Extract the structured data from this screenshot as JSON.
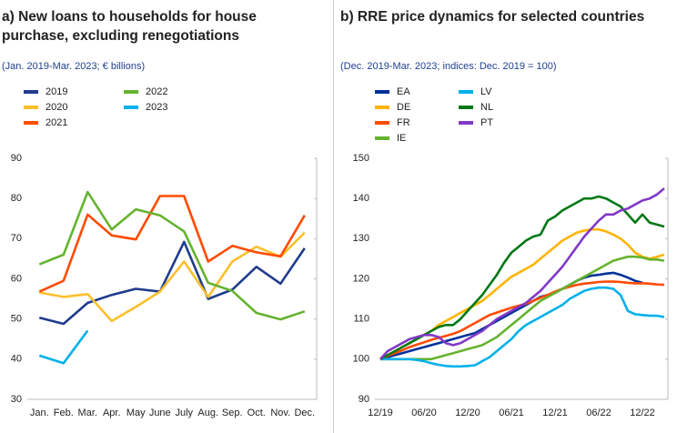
{
  "chart_data": [
    {
      "type": "line",
      "title": "a) New loans to households for house purchase, excluding renegotiations",
      "subtitle": "(Jan. 2019-Mar. 2023; € billions)",
      "categories": [
        "Jan.",
        "Feb.",
        "Mar.",
        "Apr.",
        "May",
        "June",
        "July",
        "Aug.",
        "Sep.",
        "Oct.",
        "Nov.",
        "Dec."
      ],
      "ylim": [
        30,
        90
      ],
      "yticks": [
        30,
        40,
        50,
        60,
        70,
        80,
        90
      ],
      "series": [
        {
          "name": "2019",
          "color": "#1f3c8c",
          "values": [
            50.3,
            48.8,
            54,
            56,
            57.5,
            56.8,
            69.2,
            55,
            57.3,
            63,
            58.8,
            67.6
          ]
        },
        {
          "name": "2020",
          "color": "#fbbf2d",
          "values": [
            56.6,
            55.5,
            56.2,
            49.5,
            53,
            56.8,
            64.3,
            55.5,
            64.3,
            68,
            65.5,
            71.5
          ]
        },
        {
          "name": "2021",
          "color": "#ff4b00",
          "values": [
            56.8,
            59.5,
            76,
            70.8,
            69.8,
            80.6,
            80.6,
            64.3,
            68.2,
            66.6,
            65.6,
            75.8
          ]
        },
        {
          "name": "2022",
          "color": "#65b32e",
          "values": [
            63.6,
            66,
            81.6,
            72.3,
            77.3,
            75.8,
            71.8,
            59,
            57,
            51.5,
            49.9,
            51.9
          ]
        },
        {
          "name": "2023",
          "color": "#00b1ea",
          "values": [
            40.9,
            39,
            47.1,
            null,
            null,
            null,
            null,
            null,
            null,
            null,
            null,
            null
          ]
        }
      ]
    },
    {
      "type": "line",
      "title": "b) RRE price dynamics for selected countries",
      "subtitle": "(Dec. 2019-Mar. 2023; indices: Dec. 2019 = 100)",
      "categories": [
        "12/19",
        null,
        null,
        null,
        null,
        null,
        "06/20",
        null,
        null,
        null,
        null,
        null,
        "12/20",
        null,
        null,
        null,
        null,
        null,
        "06/21",
        null,
        null,
        null,
        null,
        null,
        "12/21",
        null,
        null,
        null,
        null,
        null,
        "06/22",
        null,
        null,
        null,
        null,
        null,
        "12/22",
        null,
        null,
        null
      ],
      "ylim": [
        90,
        150
      ],
      "yticks": [
        90,
        100,
        110,
        120,
        130,
        140,
        150
      ],
      "series": [
        {
          "name": "EA",
          "color": "#003299",
          "values": [
            100,
            100.5,
            101,
            101.5,
            102,
            102.5,
            103,
            103.5,
            104,
            104.5,
            105,
            105.5,
            106,
            106.5,
            107.5,
            108.5,
            109.5,
            110.5,
            111.5,
            112.5,
            113.5,
            114.5,
            115.5,
            116,
            116.5,
            117.5,
            118.5,
            119.5,
            120.3,
            120.8,
            121,
            121.3,
            121.5,
            121,
            120.3,
            119.5,
            119,
            null,
            null,
            null
          ]
        },
        {
          "name": "DE",
          "color": "#ffb400",
          "values": [
            100,
            101,
            102,
            103,
            104,
            105,
            106,
            107,
            108.5,
            109.5,
            110.5,
            111.5,
            112.5,
            113.5,
            114.5,
            116,
            117.5,
            119,
            120.5,
            121.5,
            122.5,
            123.5,
            125,
            126.5,
            128,
            129.5,
            130.5,
            131.5,
            132,
            132.3,
            132.3,
            131.8,
            131,
            130,
            128.5,
            126.5,
            125.5,
            125,
            125.5,
            126
          ]
        },
        {
          "name": "FR",
          "color": "#ff4b00",
          "values": [
            100,
            100.8,
            101.5,
            102.2,
            103,
            103.6,
            104.2,
            104.8,
            105.3,
            105.8,
            106.3,
            107,
            108,
            109,
            110,
            111,
            111.6,
            112.2,
            112.8,
            113.3,
            113.8,
            114.5,
            115.3,
            116,
            116.8,
            117.5,
            118,
            118.5,
            118.8,
            119,
            119.2,
            119.3,
            119.3,
            119.2,
            119,
            118.9,
            118.9,
            118.8,
            118.6,
            118.5
          ]
        },
        {
          "name": "IE",
          "color": "#65b32e",
          "values": [
            100,
            100,
            100,
            100,
            100,
            100,
            100,
            100,
            100.5,
            101,
            101.5,
            102,
            102.5,
            103,
            103.5,
            104.5,
            105.5,
            107,
            108.5,
            110,
            111.5,
            113,
            114.5,
            115.5,
            116.5,
            117.5,
            118.5,
            119.5,
            120.5,
            121.5,
            122.5,
            123.5,
            124.5,
            125,
            125.5,
            125.5,
            125.3,
            124.8,
            124.8,
            124.5
          ]
        },
        {
          "name": "LV",
          "color": "#00b1ea",
          "values": [
            100,
            100,
            100,
            100,
            100,
            99.8,
            99.5,
            99,
            98.6,
            98.3,
            98.2,
            98.2,
            98.3,
            98.5,
            99.5,
            100.5,
            102,
            103.5,
            105,
            107,
            108.5,
            109.5,
            110.5,
            111.5,
            112.5,
            113.5,
            115,
            116,
            117,
            117.5,
            117.8,
            117.8,
            117.5,
            116,
            112,
            111.2,
            111,
            110.8,
            110.8,
            110.5
          ]
        },
        {
          "name": "NL",
          "color": "#007816",
          "values": [
            100,
            101,
            102,
            103,
            104,
            105,
            106,
            107,
            108,
            108.5,
            108.5,
            110,
            112,
            114,
            116,
            118.5,
            121,
            124,
            126.5,
            128,
            129.5,
            130.5,
            131,
            134.5,
            135.5,
            137,
            138,
            139,
            140,
            140,
            140.5,
            140,
            139,
            138,
            136,
            134,
            136,
            134,
            133.5,
            133
          ]
        },
        {
          "name": "PT",
          "color": "#8139c6",
          "values": [
            100,
            102,
            103,
            104,
            105,
            105.5,
            106,
            106,
            105.5,
            104,
            103.5,
            104,
            105,
            106,
            107,
            108.5,
            110,
            111,
            112,
            113,
            114,
            115.5,
            117,
            119,
            121,
            123,
            125.5,
            128,
            130.5,
            132.5,
            134.5,
            136,
            136,
            137,
            137.5,
            138.5,
            139.5,
            140,
            141,
            142.5
          ]
        }
      ]
    }
  ]
}
